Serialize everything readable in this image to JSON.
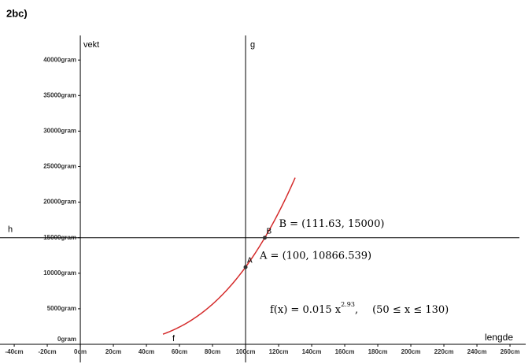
{
  "header": {
    "title": "2bc)"
  },
  "chart_data": {
    "type": "function",
    "xlabel": "lengde",
    "ylabel": "vekt",
    "xlim": [
      -48.6,
      265.7
    ],
    "ylim": [
      -2550,
      43460
    ],
    "xticks": [
      {
        "value": -40,
        "label": "-40cm"
      },
      {
        "value": -20,
        "label": "-20cm"
      },
      {
        "value": 0,
        "label": "0cm"
      },
      {
        "value": 20,
        "label": "20cm"
      },
      {
        "value": 40,
        "label": "40cm"
      },
      {
        "value": 60,
        "label": "60cm"
      },
      {
        "value": 80,
        "label": "80cm"
      },
      {
        "value": 100,
        "label": "100cm"
      },
      {
        "value": 120,
        "label": "120cm"
      },
      {
        "value": 140,
        "label": "140cm"
      },
      {
        "value": 160,
        "label": "160cm"
      },
      {
        "value": 180,
        "label": "180cm"
      },
      {
        "value": 200,
        "label": "200cm"
      },
      {
        "value": 220,
        "label": "220cm"
      },
      {
        "value": 240,
        "label": "240cm"
      },
      {
        "value": 260,
        "label": "260cm"
      }
    ],
    "yticks": [
      {
        "value": 0,
        "label": "0gram"
      },
      {
        "value": 5000,
        "label": "5000gram"
      },
      {
        "value": 10000,
        "label": "10000gram"
      },
      {
        "value": 15000,
        "label": "15000gram"
      },
      {
        "value": 20000,
        "label": "20000gram"
      },
      {
        "value": 25000,
        "label": "25000gram"
      },
      {
        "value": 30000,
        "label": "30000gram"
      },
      {
        "value": 35000,
        "label": "35000gram"
      },
      {
        "value": 40000,
        "label": "40000gram"
      }
    ],
    "function": {
      "name": "f",
      "color": "#d42a2a",
      "coefficient": 0.015,
      "exponent": 2.93,
      "domain": [
        50,
        130
      ],
      "label_parts": [
        "f(x) = 0.015 x",
        "2.93",
        ",",
        "(50 ≤ x ≤ 130)"
      ]
    },
    "lines": [
      {
        "name": "g",
        "x": 100
      },
      {
        "name": "h",
        "y": 15000
      }
    ],
    "points": [
      {
        "name": "A",
        "x": 100,
        "y": 10866.539,
        "label": "A = (100, 10866.539)"
      },
      {
        "name": "B",
        "x": 111.63,
        "y": 15000,
        "label": "B = (111.63, 15000)"
      }
    ]
  }
}
